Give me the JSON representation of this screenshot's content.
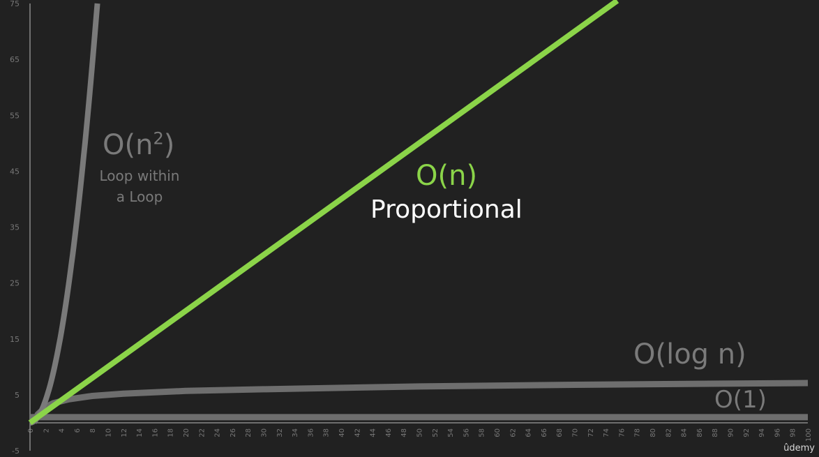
{
  "chart_data": {
    "type": "line",
    "xlim": [
      0,
      100
    ],
    "ylim": [
      -5,
      75
    ],
    "x_ticks": [
      0,
      2,
      4,
      6,
      8,
      10,
      12,
      14,
      16,
      18,
      20,
      22,
      24,
      26,
      28,
      30,
      32,
      34,
      36,
      38,
      40,
      42,
      44,
      46,
      48,
      50,
      52,
      54,
      56,
      58,
      60,
      62,
      64,
      66,
      68,
      70,
      72,
      74,
      76,
      78,
      80,
      82,
      84,
      86,
      88,
      90,
      92,
      94,
      96,
      98,
      100
    ],
    "y_ticks": [
      -5,
      5,
      15,
      25,
      35,
      45,
      55,
      65,
      75
    ],
    "grid": false,
    "series": [
      {
        "key": "n2",
        "color": "#7a7a7a",
        "x": [
          0,
          1,
          2,
          3,
          4,
          5,
          6,
          7,
          8,
          8.66
        ],
        "y": [
          0,
          1,
          4,
          9,
          16,
          25,
          36,
          49,
          64,
          75
        ]
      },
      {
        "key": "n",
        "color": "#8bd449",
        "x": [
          0,
          75.5
        ],
        "y": [
          0,
          75.5
        ]
      },
      {
        "key": "logn",
        "color": "#6e6e6e",
        "x": [
          0.5,
          1,
          2,
          3,
          5,
          8,
          12,
          20,
          30,
          50,
          70,
          100
        ],
        "y": [
          0,
          1.5,
          2.8,
          3.5,
          4.2,
          4.8,
          5.2,
          5.7,
          6.0,
          6.5,
          6.8,
          7.1
        ]
      },
      {
        "key": "o1",
        "color": "#6e6e6e",
        "x": [
          0,
          100
        ],
        "y": [
          1,
          1
        ]
      }
    ],
    "annotations": {
      "n2": {
        "label": "O(n",
        "sup": "2",
        "close": ")",
        "desc": "Loop within a Loop"
      },
      "n": {
        "label": "O(n)",
        "desc": "Proportional"
      },
      "logn": {
        "label": "O(log n)"
      },
      "o1": {
        "label": "O(1)"
      }
    }
  },
  "watermark": "ûdemy",
  "colors": {
    "background": "#212121",
    "axis": "#bdbdbd",
    "tick_label": "#777777",
    "gray_series": "#7a7a7a",
    "green_series": "#8bd449"
  }
}
